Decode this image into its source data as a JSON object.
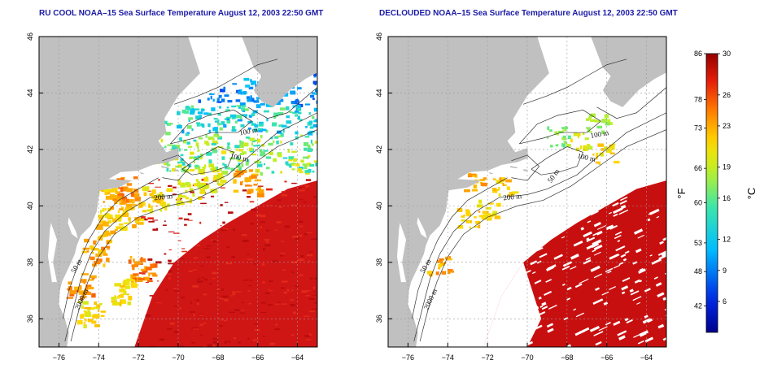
{
  "panels": [
    {
      "title": "RU COOL NOAA–15 Sea Surface Temperature August 12, 2003 22:50 GMT",
      "mode": "full",
      "contour_labels": [
        "100 m",
        "100 m",
        "200 m",
        "50 m",
        "2000 m"
      ]
    },
    {
      "title": "DECLOUDED NOAA–15 Sea Surface Temperature August 12, 2003 22:50 GMT",
      "mode": "declouded",
      "contour_labels": [
        "100 m",
        "100 m",
        "200 m",
        "50 m",
        "50 m",
        "2000 m"
      ]
    }
  ],
  "axes": {
    "x_ticks": [
      "−76",
      "−74",
      "−72",
      "−70",
      "−68",
      "−66",
      "−64"
    ],
    "y_ticks": [
      "46",
      "44",
      "42",
      "40",
      "38",
      "36"
    ],
    "lon_range": [
      -77,
      -63
    ],
    "lat_range": [
      35,
      46
    ]
  },
  "colorbar": {
    "fahrenheit_ticks": [
      "86",
      "78",
      "73",
      "66",
      "60",
      "53",
      "48",
      "42"
    ],
    "celsius_ticks": [
      "30",
      "26",
      "23",
      "19",
      "16",
      "12",
      "9",
      "6"
    ],
    "fahrenheit_unit": "°F",
    "celsius_unit": "°C",
    "range_celsius": [
      3,
      30
    ]
  },
  "colors": {
    "land": "#c0c0c0",
    "ocean_no_data": "#ffffff",
    "warm": "#cc1010",
    "title": "#1a1aa6"
  }
}
